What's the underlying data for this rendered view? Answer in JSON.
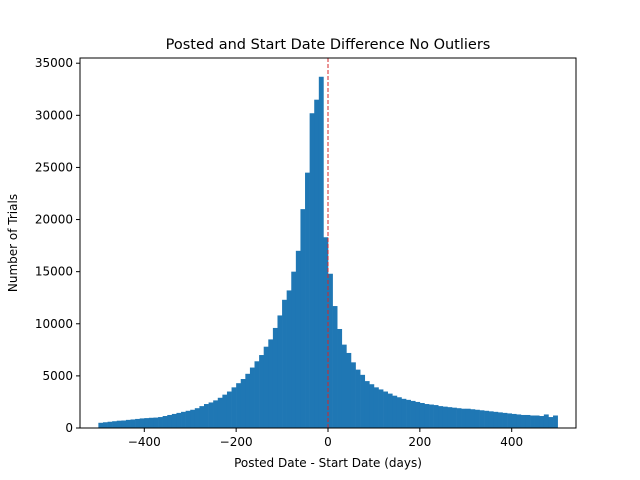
{
  "chart_data": {
    "type": "bar",
    "title": "Posted and Start Date Difference No Outliers",
    "xlabel": "Posted Date - Start Date (days)",
    "ylabel": "Number of Trials",
    "xlim": [
      -540,
      540
    ],
    "ylim": [
      0,
      35500
    ],
    "xticks": [
      -400,
      -200,
      0,
      200,
      400
    ],
    "yticks": [
      0,
      5000,
      10000,
      15000,
      20000,
      25000,
      30000,
      35000
    ],
    "bin_width": 10,
    "bins": {
      "start": -500,
      "counts": [
        500,
        550,
        600,
        650,
        700,
        720,
        780,
        820,
        870,
        920,
        950,
        980,
        1000,
        1050,
        1150,
        1250,
        1350,
        1450,
        1550,
        1650,
        1750,
        1900,
        2100,
        2300,
        2450,
        2650,
        2900,
        3200,
        3500,
        3900,
        4300,
        4700,
        5200,
        5800,
        6400,
        7000,
        7800,
        8500,
        9600,
        10800,
        12300,
        13200,
        15000,
        17000,
        21000,
        24500,
        30200,
        31500,
        33700,
        18300,
        14800,
        11700,
        9500,
        8000,
        7200,
        6300,
        5600,
        5100,
        4500,
        4200,
        3900,
        3700,
        3500,
        3300,
        3100,
        2950,
        2800,
        2700,
        2600,
        2500,
        2400,
        2300,
        2250,
        2200,
        2100,
        2050,
        2000,
        1950,
        1900,
        1850,
        1850,
        1800,
        1750,
        1700,
        1650,
        1600,
        1550,
        1500,
        1450,
        1400,
        1350,
        1300,
        1250,
        1250,
        1200,
        1200,
        1150,
        1300,
        1050,
        1200
      ]
    },
    "bar_color": "#1f77b4",
    "reference_line": {
      "x": 0,
      "color": "#d62728",
      "style": "dashed"
    },
    "grid": false
  }
}
